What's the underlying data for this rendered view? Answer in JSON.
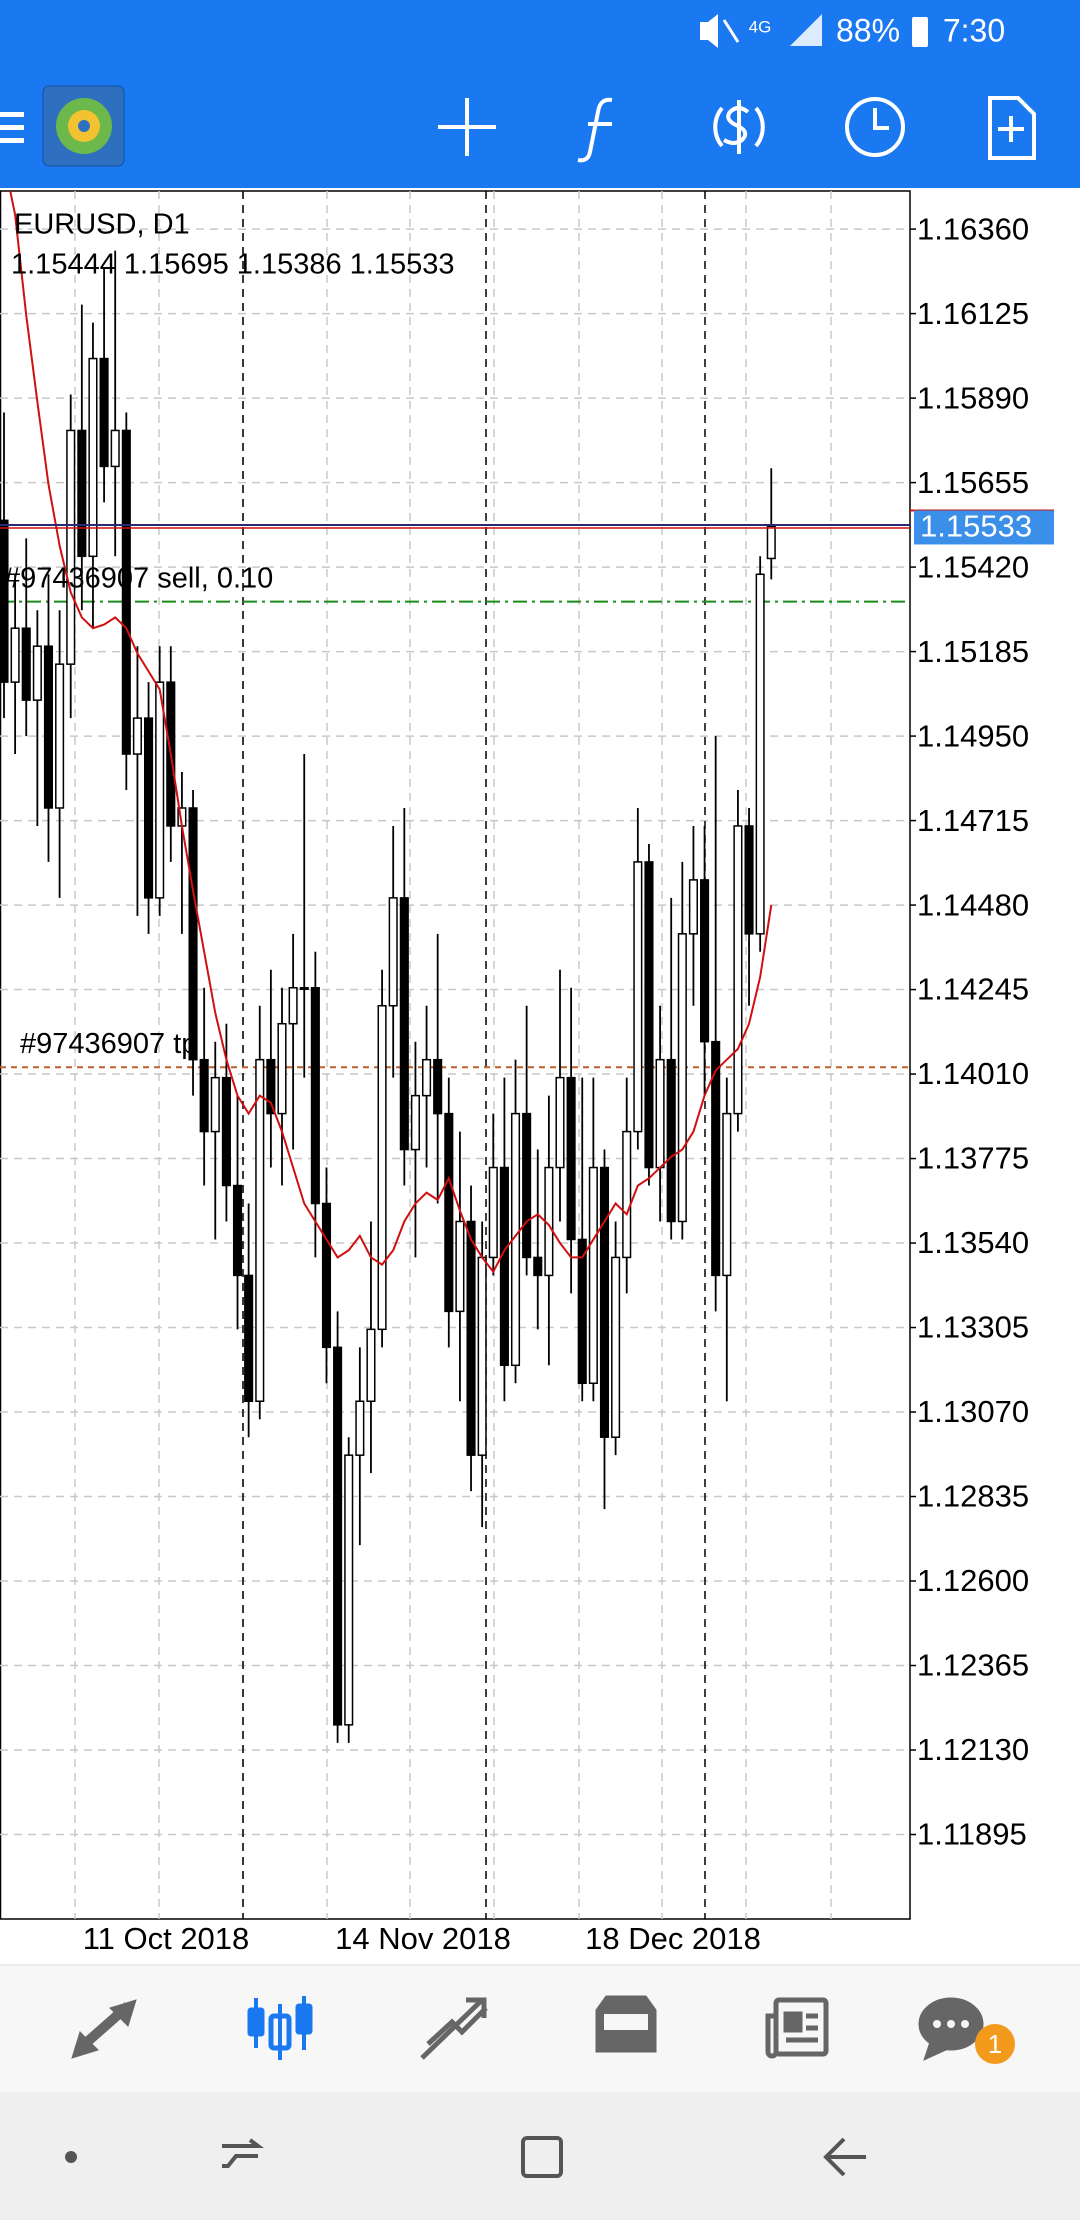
{
  "status_bar": {
    "network": "4G",
    "battery": "88%",
    "time": "7:30"
  },
  "chart_data": {
    "type": "candlestick",
    "title": "EURUSD, D1",
    "ohlc_text": "1.15444 1.15695 1.15386 1.15533",
    "ylim": [
      1.1166,
      1.16466
    ],
    "yticks": [
      {
        "value": 1.1636,
        "label": "1.16360"
      },
      1.16125,
      {
        "value": 1.1589,
        "label": "1.15890"
      },
      1.15655,
      {
        "value": 1.1542,
        "label": "1.15420"
      },
      1.15185,
      {
        "value": 1.1495,
        "label": "1.14950"
      },
      1.14715,
      {
        "value": 1.1448,
        "label": "1.14480"
      },
      1.14245,
      {
        "value": 1.1401,
        "label": "1.14010"
      },
      1.13775,
      {
        "value": 1.1354,
        "label": "1.13540"
      },
      1.13305,
      {
        "value": 1.1307,
        "label": "1.13070"
      },
      1.12835,
      {
        "value": 1.126,
        "label": "1.12600"
      },
      1.12365,
      {
        "value": 1.1213,
        "label": "1.12130"
      },
      1.11895
    ],
    "x_labels": [
      "11 Oct 2018",
      "14 Nov 2018",
      "18 Dec 2018"
    ],
    "grid": true,
    "open": [
      1.1555,
      1.151,
      1.1525,
      1.1505,
      1.152,
      1.1475,
      1.1515,
      1.158,
      1.1545,
      1.16,
      1.157,
      1.158,
      1.149,
      1.15,
      1.145,
      1.151,
      1.147,
      1.1475,
      1.1405,
      1.1385,
      1.14,
      1.137,
      1.1345,
      1.131,
      1.1405,
      1.139,
      1.1415,
      1.1425,
      1.1425,
      1.1365,
      1.1325,
      1.122,
      1.1295,
      1.131,
      1.133,
      1.142,
      1.145,
      1.138,
      1.1395,
      1.1405,
      1.139,
      1.1335,
      1.136,
      1.1295,
      1.135,
      1.1375,
      1.132,
      1.139,
      1.135,
      1.1345,
      1.1375,
      1.14,
      1.1355,
      1.1315,
      1.1375,
      1.13,
      1.135,
      1.1385,
      1.146,
      1.1375,
      1.1405,
      1.136,
      1.144,
      1.1455,
      1.141,
      1.1345,
      1.139,
      1.147,
      1.144,
      1.15444
    ],
    "high": [
      1.1585,
      1.154,
      1.155,
      1.153,
      1.154,
      1.153,
      1.159,
      1.1615,
      1.161,
      1.1625,
      1.163,
      1.1585,
      1.152,
      1.151,
      1.152,
      1.152,
      1.1485,
      1.148,
      1.1425,
      1.141,
      1.1415,
      1.1395,
      1.1365,
      1.142,
      1.143,
      1.1425,
      1.144,
      1.149,
      1.1435,
      1.1375,
      1.1335,
      1.13,
      1.1325,
      1.136,
      1.143,
      1.147,
      1.1475,
      1.141,
      1.142,
      1.144,
      1.14,
      1.1385,
      1.137,
      1.136,
      1.139,
      1.14,
      1.1405,
      1.142,
      1.138,
      1.1395,
      1.143,
      1.1425,
      1.14,
      1.14,
      1.138,
      1.136,
      1.14,
      1.1475,
      1.1465,
      1.142,
      1.145,
      1.146,
      1.147,
      1.147,
      1.1495,
      1.14,
      1.148,
      1.1475,
      1.1545,
      1.15695
    ],
    "low": [
      1.15,
      1.149,
      1.1495,
      1.147,
      1.146,
      1.145,
      1.15,
      1.153,
      1.1525,
      1.156,
      1.1545,
      1.148,
      1.1445,
      1.144,
      1.1445,
      1.146,
      1.144,
      1.1395,
      1.137,
      1.1355,
      1.136,
      1.133,
      1.13,
      1.1305,
      1.1375,
      1.137,
      1.138,
      1.14,
      1.135,
      1.1315,
      1.1215,
      1.1215,
      1.127,
      1.129,
      1.1325,
      1.14,
      1.137,
      1.135,
      1.1375,
      1.1365,
      1.1325,
      1.131,
      1.1285,
      1.1275,
      1.1345,
      1.131,
      1.1315,
      1.1345,
      1.133,
      1.132,
      1.136,
      1.134,
      1.131,
      1.131,
      1.128,
      1.1295,
      1.134,
      1.138,
      1.137,
      1.136,
      1.1355,
      1.1355,
      1.142,
      1.1395,
      1.1335,
      1.131,
      1.1385,
      1.142,
      1.1435,
      1.15386
    ],
    "close": [
      1.151,
      1.1525,
      1.1505,
      1.152,
      1.1475,
      1.1515,
      1.158,
      1.1545,
      1.16,
      1.157,
      1.158,
      1.149,
      1.15,
      1.145,
      1.151,
      1.147,
      1.1475,
      1.1405,
      1.1385,
      1.14,
      1.137,
      1.1345,
      1.131,
      1.1405,
      1.139,
      1.1415,
      1.1425,
      1.1425,
      1.1365,
      1.1325,
      1.122,
      1.1295,
      1.131,
      1.133,
      1.142,
      1.145,
      1.138,
      1.1395,
      1.1405,
      1.139,
      1.1335,
      1.136,
      1.1295,
      1.135,
      1.1375,
      1.132,
      1.139,
      1.135,
      1.1345,
      1.1375,
      1.14,
      1.1355,
      1.1315,
      1.1375,
      1.13,
      1.135,
      1.1385,
      1.146,
      1.1375,
      1.1405,
      1.136,
      1.144,
      1.1455,
      1.141,
      1.1345,
      1.139,
      1.147,
      1.144,
      1.154,
      1.15533
    ],
    "ma": [
      1.1655,
      1.164,
      1.1612,
      1.1588,
      1.1565,
      1.1548,
      1.1535,
      1.1528,
      1.1525,
      1.1526,
      1.1528,
      1.1525,
      1.1518,
      1.1513,
      1.1508,
      1.149,
      1.147,
      1.1452,
      1.1435,
      1.1418,
      1.1405,
      1.1395,
      1.139,
      1.1395,
      1.1393,
      1.1385,
      1.1375,
      1.1365,
      1.136,
      1.1355,
      1.135,
      1.1352,
      1.1356,
      1.135,
      1.1348,
      1.1352,
      1.136,
      1.1365,
      1.1368,
      1.1366,
      1.1372,
      1.1363,
      1.1355,
      1.135,
      1.1346,
      1.1352,
      1.1356,
      1.136,
      1.1362,
      1.1359,
      1.1354,
      1.135,
      1.135,
      1.1355,
      1.136,
      1.1365,
      1.1362,
      1.137,
      1.1372,
      1.1375,
      1.1378,
      1.138,
      1.1385,
      1.1395,
      1.1402,
      1.1405,
      1.1408,
      1.1415,
      1.1428,
      1.1448
    ],
    "ma_color": "#d01010",
    "up_color": "#ffffff",
    "down_color": "#000000",
    "current_price": 1.15533,
    "orders": [
      {
        "label": "#97436907 sell, 0.10",
        "price": 1.15324,
        "color": "#1a8a1a"
      },
      {
        "label": "#97436907 tp",
        "price": 1.14029,
        "color": "#c0602f"
      }
    ]
  },
  "bottom_nav": {
    "badge": "1"
  }
}
